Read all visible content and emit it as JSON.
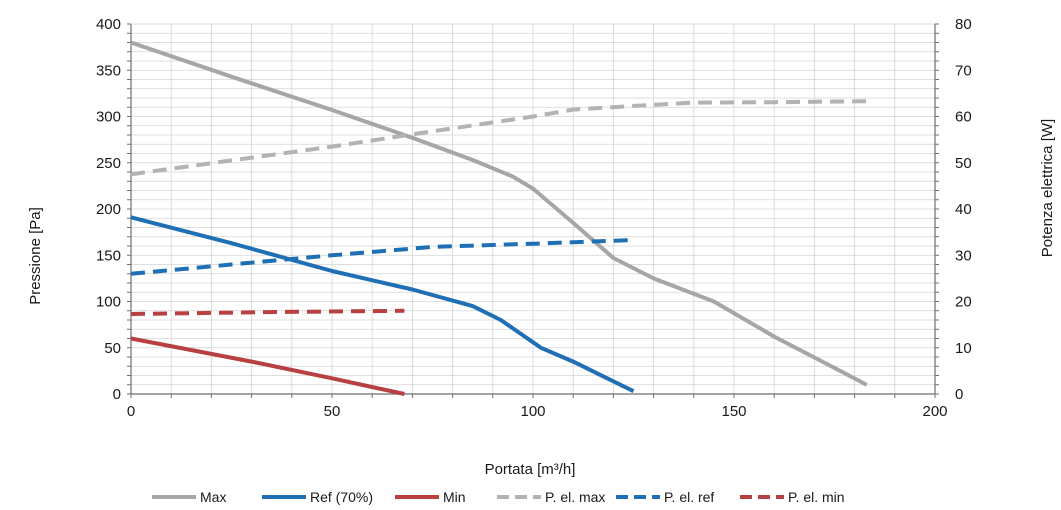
{
  "chart_data": {
    "type": "line",
    "title": "",
    "xlabel": "Portata [m³/h]",
    "ylabel": "Pressione [Pa]",
    "y2label": "Potenza elettrica [W]",
    "xlim": [
      0,
      200
    ],
    "ylim": [
      0,
      400
    ],
    "y2lim": [
      0,
      80
    ],
    "xticks": [
      "0",
      "50",
      "100",
      "150",
      "200"
    ],
    "yticks": [
      "0",
      "50",
      "100",
      "150",
      "200",
      "250",
      "300",
      "350",
      "400"
    ],
    "y2ticks": [
      "0",
      "10",
      "20",
      "30",
      "40",
      "50",
      "60",
      "70",
      "80"
    ],
    "grid": true,
    "legend_position": "bottom",
    "series": [
      {
        "name": "Max",
        "axis": "left",
        "style": "solid",
        "color": "#a6a6a8",
        "x": [
          0,
          25,
          50,
          70,
          85,
          95,
          100,
          110,
          120,
          130,
          145,
          160,
          172,
          183
        ],
        "y": [
          380,
          343,
          307,
          277,
          253,
          235,
          222,
          185,
          147,
          125,
          100,
          62,
          35,
          10
        ]
      },
      {
        "name": "Ref (70%)",
        "axis": "left",
        "style": "solid",
        "color": "#1f6fb5",
        "x": [
          0,
          25,
          50,
          70,
          85,
          92,
          97,
          102,
          110,
          118,
          125
        ],
        "y": [
          191,
          163,
          133,
          113,
          95,
          80,
          65,
          50,
          35,
          18,
          3
        ]
      },
      {
        "name": "Min",
        "axis": "left",
        "style": "solid",
        "color": "#b84040",
        "x": [
          0,
          30,
          50,
          68
        ],
        "y": [
          60,
          35,
          17,
          0
        ]
      },
      {
        "name": "P. el. max",
        "axis": "right",
        "style": "dashed",
        "color": "#b3b3b5",
        "x": [
          0,
          25,
          50,
          75,
          100,
          110,
          125,
          140,
          160,
          183
        ],
        "y": [
          47.5,
          50.5,
          53.5,
          56.8,
          60.0,
          61.5,
          62.3,
          63.0,
          63.1,
          63.3
        ]
      },
      {
        "name": "P. el. ref",
        "axis": "right",
        "style": "dashed",
        "color": "#1f6fb5",
        "x": [
          0,
          25,
          50,
          75,
          100,
          125
        ],
        "y": [
          26.0,
          28.0,
          30.0,
          31.8,
          32.5,
          33.3
        ]
      },
      {
        "name": "P. el. min",
        "axis": "right",
        "style": "dashed",
        "color": "#b84040",
        "x": [
          0,
          34,
          68
        ],
        "y": [
          17.3,
          17.7,
          18.0
        ]
      }
    ]
  }
}
